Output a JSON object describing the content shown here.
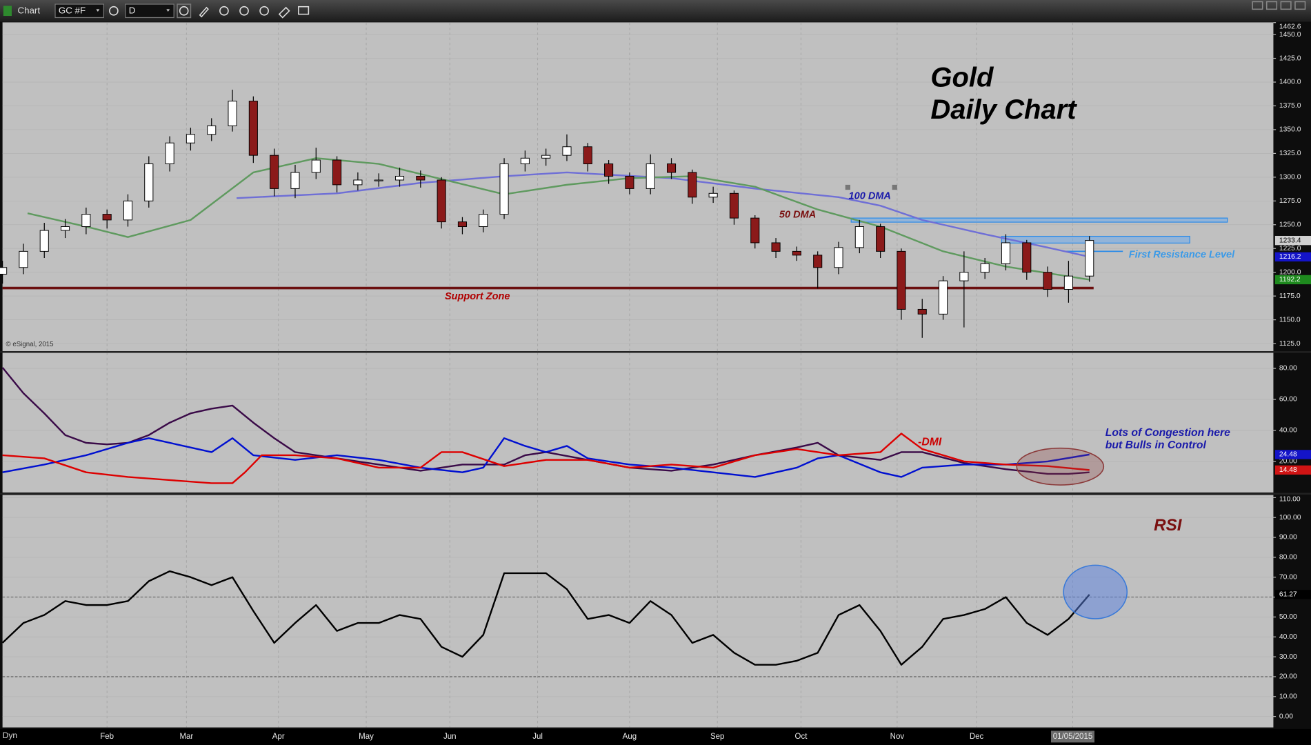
{
  "toolbar": {
    "title": "Chart",
    "symbol": "GC #F",
    "interval": "D",
    "mode": "Dyn"
  },
  "chart_data": [
    {
      "type": "candlestick",
      "title": "Gold",
      "subtitle": "Daily Chart",
      "copyright": "© eSignal, 2015",
      "x": [
        0,
        5,
        10,
        15,
        20,
        25,
        30,
        35,
        40,
        45,
        50,
        55,
        60,
        65,
        70,
        75,
        80,
        85,
        90,
        95,
        100,
        105,
        110,
        115,
        120,
        125,
        130,
        135,
        140,
        145,
        150,
        155,
        160,
        165,
        170,
        175,
        180,
        185,
        190,
        195,
        200,
        205,
        210,
        215,
        220,
        225,
        230,
        235,
        240,
        245,
        250,
        255,
        260
      ],
      "open": [
        1198,
        1205,
        1222,
        1244,
        1248,
        1261,
        1255,
        1275,
        1314,
        1336,
        1345,
        1354,
        1380,
        1323,
        1288,
        1305,
        1318,
        1292,
        1297,
        1297,
        1301,
        1297,
        1253,
        1248,
        1261,
        1314,
        1320,
        1323,
        1332,
        1314,
        1301,
        1288,
        1314,
        1305,
        1279,
        1283,
        1257,
        1231,
        1222,
        1218,
        1205,
        1226,
        1248,
        1222,
        1161,
        1156,
        1191,
        1200,
        1209,
        1231,
        1200,
        1182,
        1196
      ],
      "high": [
        1212,
        1230,
        1252,
        1256,
        1268,
        1266,
        1282,
        1322,
        1343,
        1352,
        1362,
        1392,
        1385,
        1330,
        1313,
        1331,
        1322,
        1305,
        1304,
        1310,
        1307,
        1300,
        1258,
        1266,
        1320,
        1328,
        1330,
        1345,
        1336,
        1318,
        1305,
        1324,
        1320,
        1308,
        1290,
        1286,
        1260,
        1236,
        1227,
        1222,
        1232,
        1255,
        1251,
        1225,
        1172,
        1196,
        1222,
        1215,
        1240,
        1234,
        1206,
        1212,
        1238
      ],
      "low": [
        1188,
        1198,
        1215,
        1236,
        1240,
        1246,
        1248,
        1268,
        1306,
        1328,
        1338,
        1348,
        1315,
        1280,
        1278,
        1298,
        1284,
        1286,
        1290,
        1290,
        1289,
        1246,
        1240,
        1242,
        1256,
        1306,
        1312,
        1317,
        1306,
        1293,
        1282,
        1282,
        1298,
        1272,
        1273,
        1250,
        1225,
        1215,
        1212,
        1183,
        1198,
        1220,
        1215,
        1150,
        1131,
        1150,
        1142,
        1193,
        1202,
        1192,
        1174,
        1168,
        1190
      ],
      "close": [
        1205,
        1222,
        1244,
        1248,
        1261,
        1255,
        1275,
        1314,
        1336,
        1345,
        1354,
        1380,
        1323,
        1288,
        1305,
        1318,
        1292,
        1297,
        1297,
        1301,
        1297,
        1253,
        1248,
        1261,
        1314,
        1320,
        1323,
        1332,
        1314,
        1301,
        1288,
        1314,
        1305,
        1279,
        1283,
        1257,
        1231,
        1222,
        1218,
        1205,
        1226,
        1248,
        1222,
        1161,
        1156,
        1191,
        1200,
        1209,
        1231,
        1200,
        1182,
        1196,
        1233.4
      ],
      "up_color": "#ffffff",
      "down_color": "#8b1a1a",
      "series": [
        {
          "name": "100 DMA",
          "color": "#6f6fd6",
          "x": [
            56,
            80,
            100,
            120,
            135,
            160,
            180,
            200,
            210,
            220,
            235,
            250,
            260
          ],
          "values": [
            1278,
            1283,
            1294,
            1301,
            1305,
            1299,
            1288,
            1279,
            1270,
            1255,
            1240,
            1226,
            1216.2
          ]
        },
        {
          "name": "50 DMA",
          "color": "#5f9a5f",
          "x": [
            6,
            20,
            30,
            45,
            60,
            75,
            90,
            105,
            120,
            135,
            150,
            165,
            180,
            195,
            210,
            225,
            240,
            260
          ],
          "values": [
            1262,
            1248,
            1237,
            1255,
            1305,
            1320,
            1314,
            1298,
            1282,
            1292,
            1299,
            1301,
            1290,
            1266,
            1248,
            1222,
            1206,
            1192.2
          ]
        }
      ],
      "support": {
        "label": "Support Zone",
        "value": 1183.4,
        "x": [
          0,
          261
        ],
        "color": "#6b0f0f"
      },
      "resistance_zones": [
        {
          "low": 1252.7,
          "high": 1257,
          "x": [
            203,
            293
          ]
        },
        {
          "low": 1230.7,
          "high": 1237.8,
          "x": [
            239,
            284
          ]
        }
      ],
      "resistance_line": {
        "label": "First Resistance Level",
        "value": 1222,
        "x": [
          254,
          268
        ]
      },
      "ylim": [
        1117,
        1462.6
      ],
      "yticks": [
        1462.6,
        {
          "value": 1450,
          "label": "1450.0"
        },
        {
          "value": 1425,
          "label": "1425.0"
        },
        {
          "value": 1400,
          "label": "1400.0"
        },
        {
          "value": 1375,
          "label": "1375.0"
        },
        {
          "value": 1350,
          "label": "1350.0"
        },
        {
          "value": 1325,
          "label": "1325.0"
        },
        {
          "value": 1300,
          "label": "1300.0"
        },
        {
          "value": 1275,
          "label": "1275.0"
        },
        {
          "value": 1250,
          "label": "1250.0"
        },
        {
          "value": 1225,
          "label": "1225.0"
        },
        {
          "value": 1200,
          "label": "1200.0"
        },
        {
          "value": 1175,
          "label": "1175.0"
        },
        {
          "value": 1150,
          "label": "1150.0"
        },
        {
          "value": 1125,
          "label": "1125.0"
        }
      ],
      "grid": true
    },
    {
      "type": "line",
      "series": [
        {
          "color": "#3a0a48",
          "x": [
            0,
            5,
            10,
            15,
            20,
            25,
            30,
            35,
            40,
            45,
            50,
            55,
            60,
            65,
            70,
            75,
            80,
            90,
            100,
            105,
            110,
            120,
            125,
            130,
            140,
            150,
            160,
            170,
            180,
            190,
            195,
            200,
            210,
            215,
            220,
            230,
            240,
            250,
            255,
            260
          ],
          "values": [
            80.5,
            64,
            51,
            37,
            32,
            31,
            32,
            37,
            45,
            51,
            54,
            56,
            45,
            35,
            26,
            24,
            22,
            18,
            14,
            16,
            18,
            18,
            24,
            26,
            21,
            16,
            14,
            18,
            24,
            29,
            32,
            24,
            21,
            26,
            26,
            19,
            15,
            12,
            12,
            13
          ]
        },
        {
          "color": "#0010d0",
          "x": [
            0,
            10,
            20,
            30,
            35,
            40,
            50,
            55,
            60,
            70,
            80,
            90,
            100,
            110,
            115,
            120,
            125,
            130,
            135,
            140,
            150,
            160,
            170,
            180,
            190,
            195,
            200,
            210,
            215,
            220,
            230,
            240,
            250,
            260
          ],
          "values": [
            13,
            18,
            24,
            32,
            35,
            32,
            26,
            35,
            24,
            21,
            24,
            21,
            16,
            13,
            16,
            35,
            30,
            26,
            30,
            22,
            18,
            16,
            13,
            10,
            16,
            22,
            24,
            13,
            10,
            16,
            18,
            18,
            20,
            24.48
          ]
        },
        {
          "name": "-DMI",
          "color": "#dd0000",
          "x": [
            0,
            10,
            20,
            30,
            40,
            50,
            55,
            58,
            62,
            70,
            80,
            90,
            100,
            105,
            110,
            120,
            130,
            140,
            150,
            160,
            170,
            180,
            190,
            200,
            210,
            215,
            220,
            230,
            240,
            250,
            260
          ],
          "values": [
            24,
            22,
            13,
            10,
            8,
            6,
            6,
            13,
            24,
            24,
            22,
            16,
            16,
            26,
            26,
            17,
            21,
            21,
            16,
            18,
            16,
            24,
            28,
            24,
            26,
            38,
            28,
            20,
            18,
            17,
            14.48
          ]
        }
      ],
      "annotations": [
        "Lots of Congestion here",
        "but Bulls in Control"
      ],
      "ylim": [
        0,
        90
      ],
      "yticks": [
        {
          "value": 80,
          "label": "80.00"
        },
        {
          "value": 60,
          "label": "60.00"
        },
        {
          "value": 40,
          "label": "40.00"
        },
        {
          "value": 20,
          "label": "20.00"
        }
      ],
      "grid": true
    },
    {
      "type": "line",
      "title": "RSI",
      "series": [
        {
          "color": "#000000",
          "x": [
            0,
            5,
            10,
            15,
            20,
            25,
            30,
            35,
            40,
            45,
            50,
            55,
            60,
            65,
            70,
            75,
            80,
            85,
            90,
            95,
            100,
            105,
            110,
            115,
            120,
            125,
            130,
            135,
            140,
            145,
            150,
            155,
            160,
            165,
            170,
            175,
            180,
            185,
            190,
            195,
            200,
            205,
            210,
            215,
            220,
            225,
            230,
            235,
            240,
            245,
            250,
            255,
            260
          ],
          "values": [
            37,
            47,
            51,
            58,
            56,
            56,
            58,
            68,
            73,
            70,
            66,
            70,
            53,
            37,
            47,
            56,
            43,
            47,
            47,
            51,
            49,
            35,
            30,
            41,
            72,
            72,
            72,
            64,
            49,
            51,
            47,
            58,
            51,
            37,
            41,
            32,
            26,
            26,
            28,
            32,
            51,
            56,
            43,
            26,
            35,
            49,
            51,
            54,
            60,
            47,
            41,
            49,
            61.27
          ]
        }
      ],
      "hlines": [
        60,
        20
      ],
      "ylim": [
        -5.5,
        111.3
      ],
      "yticks": [
        {
          "value": 110,
          "label": "110.00"
        },
        {
          "value": 100,
          "label": "100.00"
        },
        {
          "value": 90,
          "label": "90.00"
        },
        {
          "value": 80,
          "label": "80.00"
        },
        {
          "value": 70,
          "label": "70.00"
        },
        {
          "value": 60,
          "label": "60.00"
        },
        {
          "value": 50,
          "label": "50.00"
        },
        {
          "value": 40,
          "label": "40.00"
        },
        {
          "value": 30,
          "label": "30.00"
        },
        {
          "value": 20,
          "label": "20.00"
        },
        {
          "value": 10,
          "label": "10.00"
        },
        {
          "value": 0,
          "label": "0.00"
        }
      ],
      "xlim": [
        0,
        304
      ],
      "xticks": [
        {
          "value": 25,
          "label": "Feb"
        },
        {
          "value": 44,
          "label": "Mar"
        },
        {
          "value": 66,
          "label": "Apr"
        },
        {
          "value": 87,
          "label": "May"
        },
        {
          "value": 107,
          "label": "Jun"
        },
        {
          "value": 128,
          "label": "Jul"
        },
        {
          "value": 150,
          "label": "Aug"
        },
        {
          "value": 171,
          "label": "Sep"
        },
        {
          "value": 191,
          "label": "Oct"
        },
        {
          "value": 214,
          "label": "Nov"
        },
        {
          "value": 233,
          "label": "Dec"
        },
        {
          "value": 256,
          "label": "01/05/2015"
        }
      ],
      "grid": true
    }
  ]
}
